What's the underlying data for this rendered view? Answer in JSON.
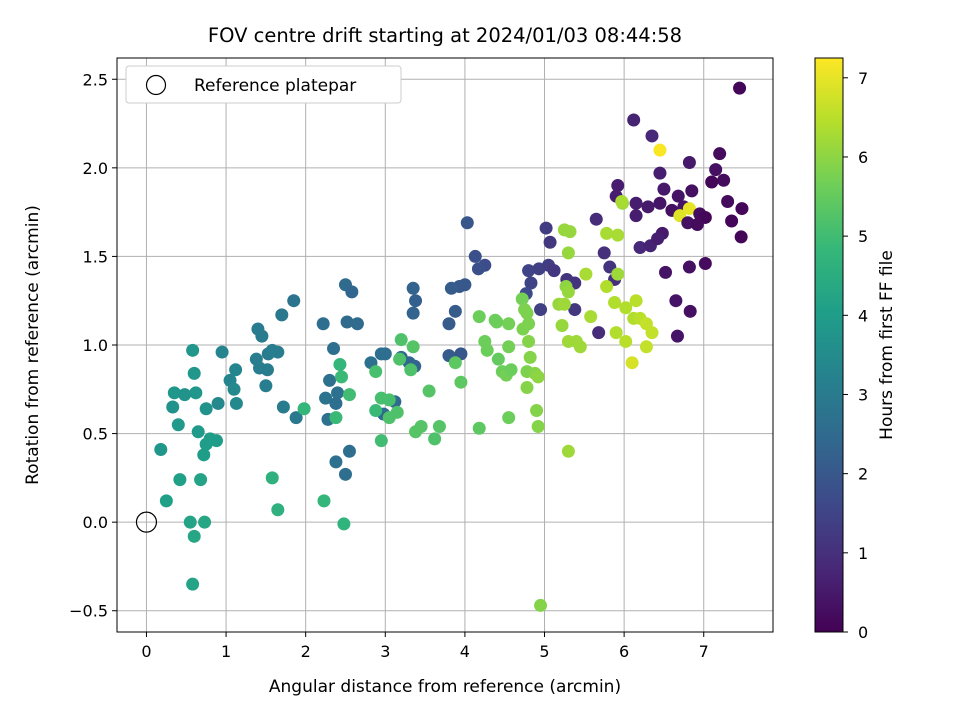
{
  "chart_data": {
    "type": "scatter",
    "title": "FOV centre drift starting at 2024/01/03 08:44:58",
    "xlabel": "Angular distance from reference (arcmin)",
    "ylabel": "Rotation from reference (arcmin)",
    "xlim": [
      -0.37,
      7.87
    ],
    "ylim": [
      -0.62,
      2.62
    ],
    "xticks": [
      0,
      1,
      2,
      3,
      4,
      5,
      6,
      7
    ],
    "xtick_labels": [
      "0",
      "1",
      "2",
      "3",
      "4",
      "5",
      "6",
      "7"
    ],
    "yticks": [
      -0.5,
      0.0,
      0.5,
      1.0,
      1.5,
      2.0,
      2.5
    ],
    "ytick_labels": [
      "−0.5",
      "0.0",
      "0.5",
      "1.0",
      "1.5",
      "2.0",
      "2.5"
    ],
    "grid": true,
    "legend": {
      "position": "top-left",
      "label": "Reference platepar"
    },
    "reference_point": {
      "x": 0,
      "y": 0
    },
    "colorbar": {
      "label": "Hours from first FF file",
      "range": [
        0,
        7.25
      ],
      "ticks": [
        0,
        1,
        2,
        3,
        4,
        5,
        6,
        7
      ],
      "tick_labels": [
        "0",
        "1",
        "2",
        "3",
        "4",
        "5",
        "6",
        "7"
      ],
      "colormap": "viridis"
    },
    "colormap_stops": [
      "#440154",
      "#482878",
      "#3e4989",
      "#31688e",
      "#26828e",
      "#1f9e89",
      "#35b779",
      "#6ece58",
      "#b5de2b",
      "#fde725"
    ],
    "points": [
      [
        7.45,
        2.45,
        0.1
      ],
      [
        6.12,
        2.27,
        0.7
      ],
      [
        6.35,
        2.18,
        0.8
      ],
      [
        6.45,
        2.1,
        7.2
      ],
      [
        7.2,
        2.08,
        0.2
      ],
      [
        5.92,
        1.9,
        0.6
      ],
      [
        6.45,
        1.97,
        0.6
      ],
      [
        7.15,
        1.99,
        0.3
      ],
      [
        6.82,
        2.03,
        0.5
      ],
      [
        7.25,
        1.93,
        0.2
      ],
      [
        7.1,
        1.92,
        0.1
      ],
      [
        6.5,
        1.88,
        0.5
      ],
      [
        6.68,
        1.84,
        0.4
      ],
      [
        6.85,
        1.87,
        0.3
      ],
      [
        7.3,
        1.81,
        0.2
      ],
      [
        7.48,
        1.77,
        0.1
      ],
      [
        5.9,
        1.84,
        0.6
      ],
      [
        5.98,
        1.8,
        6.2
      ],
      [
        6.15,
        1.8,
        0.6
      ],
      [
        6.3,
        1.78,
        0.5
      ],
      [
        6.45,
        1.8,
        0.4
      ],
      [
        6.6,
        1.76,
        0.3
      ],
      [
        6.75,
        1.78,
        0.4
      ],
      [
        6.82,
        1.77,
        7.0
      ],
      [
        6.95,
        1.74,
        0.2
      ],
      [
        7.02,
        1.72,
        0.1
      ],
      [
        6.7,
        1.73,
        6.9
      ],
      [
        6.8,
        1.69,
        0.3
      ],
      [
        6.92,
        1.68,
        0.2
      ],
      [
        7.35,
        1.7,
        0.1
      ],
      [
        5.65,
        1.71,
        0.9
      ],
      [
        6.15,
        1.73,
        0.6
      ],
      [
        6.48,
        1.63,
        0.5
      ],
      [
        6.2,
        1.55,
        0.8
      ],
      [
        6.33,
        1.56,
        0.7
      ],
      [
        6.42,
        1.6,
        0.6
      ],
      [
        7.47,
        1.61,
        0.1
      ],
      [
        5.02,
        1.66,
        1.3
      ],
      [
        5.07,
        1.58,
        1.2
      ],
      [
        5.75,
        1.52,
        1.0
      ],
      [
        5.82,
        1.44,
        1.1
      ],
      [
        5.88,
        1.37,
        1.0
      ],
      [
        6.52,
        1.41,
        0.4
      ],
      [
        6.82,
        1.44,
        0.3
      ],
      [
        7.02,
        1.46,
        0.2
      ],
      [
        4.03,
        1.69,
        2.0
      ],
      [
        4.13,
        1.5,
        1.8
      ],
      [
        4.25,
        1.45,
        1.7
      ],
      [
        4.17,
        1.43,
        1.8
      ],
      [
        4.8,
        1.42,
        1.5
      ],
      [
        4.93,
        1.43,
        1.4
      ],
      [
        5.05,
        1.45,
        1.3
      ],
      [
        5.12,
        1.42,
        1.2
      ],
      [
        4.83,
        1.35,
        1.5
      ],
      [
        5.28,
        1.37,
        1.1
      ],
      [
        5.38,
        1.35,
        1.1
      ],
      [
        4.77,
        1.29,
        1.6
      ],
      [
        4.95,
        1.2,
        1.4
      ],
      [
        5.38,
        1.2,
        1.2
      ],
      [
        5.68,
        1.07,
        0.9
      ],
      [
        6.65,
        1.25,
        0.4
      ],
      [
        6.83,
        1.19,
        0.3
      ],
      [
        6.67,
        1.05,
        0.4
      ],
      [
        3.93,
        1.33,
        2.0
      ],
      [
        4.0,
        1.34,
        2.0
      ],
      [
        3.83,
        1.32,
        2.1
      ],
      [
        3.35,
        1.32,
        2.3
      ],
      [
        3.38,
        1.25,
        2.2
      ],
      [
        3.35,
        1.18,
        2.3
      ],
      [
        3.88,
        1.19,
        2.1
      ],
      [
        3.8,
        1.12,
        2.1
      ],
      [
        3.37,
        0.88,
        2.3
      ],
      [
        3.3,
        0.9,
        2.4
      ],
      [
        3.8,
        0.94,
        2.1
      ],
      [
        3.95,
        0.95,
        2.0
      ],
      [
        3.2,
        0.93,
        2.4
      ],
      [
        2.82,
        0.9,
        2.7
      ],
      [
        2.95,
        0.95,
        2.6
      ],
      [
        3.0,
        0.95,
        2.6
      ],
      [
        3.12,
        0.68,
        2.5
      ],
      [
        2.98,
        0.61,
        2.5
      ],
      [
        2.5,
        1.34,
        2.5
      ],
      [
        2.58,
        1.3,
        2.4
      ],
      [
        2.52,
        1.13,
        2.5
      ],
      [
        2.65,
        1.12,
        2.5
      ],
      [
        2.22,
        1.12,
        2.6
      ],
      [
        2.35,
        0.98,
        2.6
      ],
      [
        2.3,
        0.8,
        2.7
      ],
      [
        2.25,
        0.7,
        2.8
      ],
      [
        2.4,
        0.73,
        2.7
      ],
      [
        2.28,
        0.58,
        2.7
      ],
      [
        2.38,
        0.67,
        2.6
      ],
      [
        2.38,
        0.34,
        2.7
      ],
      [
        2.55,
        0.4,
        2.6
      ],
      [
        2.5,
        0.27,
        2.6
      ],
      [
        1.85,
        1.25,
        2.8
      ],
      [
        1.7,
        1.17,
        2.9
      ],
      [
        1.4,
        1.09,
        3.0
      ],
      [
        1.45,
        1.05,
        3.0
      ],
      [
        1.53,
        0.95,
        3.0
      ],
      [
        1.58,
        0.97,
        3.1
      ],
      [
        1.65,
        0.96,
        3.1
      ],
      [
        1.38,
        0.92,
        3.1
      ],
      [
        1.42,
        0.87,
        3.1
      ],
      [
        1.52,
        0.86,
        3.0
      ],
      [
        1.5,
        0.77,
        3.1
      ],
      [
        1.72,
        0.65,
        3.0
      ],
      [
        1.88,
        0.59,
        2.9
      ],
      [
        1.12,
        0.86,
        3.3
      ],
      [
        1.05,
        0.8,
        3.3
      ],
      [
        1.1,
        0.75,
        3.4
      ],
      [
        1.13,
        0.67,
        3.4
      ],
      [
        0.95,
        0.96,
        3.3
      ],
      [
        0.9,
        0.67,
        3.4
      ],
      [
        0.58,
        0.97,
        3.8
      ],
      [
        0.6,
        0.84,
        3.8
      ],
      [
        0.62,
        0.73,
        3.8
      ],
      [
        0.35,
        0.73,
        3.8
      ],
      [
        0.48,
        0.72,
        3.7
      ],
      [
        0.33,
        0.65,
        3.7
      ],
      [
        0.75,
        0.64,
        3.7
      ],
      [
        0.65,
        0.51,
        3.9
      ],
      [
        0.4,
        0.55,
        3.9
      ],
      [
        0.8,
        0.47,
        4.0
      ],
      [
        0.88,
        0.46,
        4.0
      ],
      [
        0.75,
        0.44,
        4.0
      ],
      [
        0.72,
        0.38,
        4.0
      ],
      [
        0.18,
        0.41,
        3.8
      ],
      [
        0.42,
        0.24,
        4.1
      ],
      [
        0.68,
        0.24,
        4.2
      ],
      [
        0.25,
        0.12,
        4.1
      ],
      [
        0.55,
        0.0,
        4.2
      ],
      [
        0.73,
        0.0,
        4.3
      ],
      [
        0.6,
        -0.08,
        4.3
      ],
      [
        0.58,
        -0.35,
        4.2
      ],
      [
        1.58,
        0.25,
        4.6
      ],
      [
        1.65,
        0.07,
        4.6
      ],
      [
        1.98,
        0.64,
        4.8
      ],
      [
        2.38,
        0.59,
        4.9
      ],
      [
        2.23,
        0.12,
        4.8
      ],
      [
        2.48,
        -0.01,
        4.7
      ],
      [
        2.43,
        0.89,
        4.8
      ],
      [
        2.45,
        0.82,
        4.9
      ],
      [
        2.55,
        0.72,
        5.0
      ],
      [
        2.88,
        0.63,
        4.9
      ],
      [
        2.95,
        0.7,
        5.1
      ],
      [
        3.05,
        0.69,
        5.1
      ],
      [
        2.95,
        0.46,
        5.0
      ],
      [
        3.05,
        0.59,
        5.2
      ],
      [
        3.15,
        0.62,
        5.2
      ],
      [
        2.88,
        0.85,
        5.1
      ],
      [
        3.18,
        0.92,
        5.2
      ],
      [
        3.2,
        1.03,
        5.2
      ],
      [
        3.35,
        0.99,
        5.3
      ],
      [
        3.32,
        0.86,
        5.2
      ],
      [
        3.38,
        0.51,
        5.3
      ],
      [
        3.45,
        0.54,
        5.3
      ],
      [
        3.55,
        0.74,
        5.3
      ],
      [
        3.62,
        0.47,
        5.2
      ],
      [
        3.68,
        0.54,
        5.3
      ],
      [
        3.88,
        0.9,
        5.4
      ],
      [
        3.95,
        0.79,
        5.4
      ],
      [
        4.18,
        0.53,
        5.4
      ],
      [
        4.18,
        1.16,
        5.6
      ],
      [
        4.38,
        1.14,
        5.6
      ],
      [
        4.4,
        1.13,
        5.6
      ],
      [
        4.55,
        1.12,
        5.7
      ],
      [
        4.25,
        1.02,
        5.6
      ],
      [
        4.28,
        0.97,
        5.6
      ],
      [
        4.42,
        0.92,
        5.5
      ],
      [
        4.47,
        0.85,
        5.6
      ],
      [
        4.52,
        0.83,
        5.7
      ],
      [
        4.55,
        0.99,
        5.7
      ],
      [
        4.58,
        0.86,
        5.6
      ],
      [
        4.55,
        0.59,
        5.6
      ],
      [
        4.72,
        1.26,
        5.7
      ],
      [
        4.75,
        1.2,
        5.8
      ],
      [
        4.78,
        1.18,
        5.8
      ],
      [
        4.73,
        1.09,
        5.8
      ],
      [
        4.8,
        1.12,
        5.8
      ],
      [
        4.8,
        1.02,
        5.9
      ],
      [
        4.78,
        0.85,
        5.8
      ],
      [
        4.78,
        0.76,
        5.9
      ],
      [
        4.82,
        0.93,
        5.9
      ],
      [
        4.88,
        0.84,
        5.9
      ],
      [
        4.92,
        0.82,
        6.0
      ],
      [
        4.9,
        0.63,
        5.9
      ],
      [
        4.92,
        0.54,
        5.9
      ],
      [
        4.95,
        -0.47,
        5.9
      ],
      [
        5.25,
        1.65,
        6.1
      ],
      [
        5.32,
        1.64,
        6.1
      ],
      [
        5.3,
        1.52,
        6.1
      ],
      [
        5.27,
        1.33,
        6.0
      ],
      [
        5.3,
        1.3,
        6.1
      ],
      [
        5.18,
        1.23,
        6.1
      ],
      [
        5.25,
        1.23,
        6.2
      ],
      [
        5.22,
        1.11,
        6.1
      ],
      [
        5.3,
        1.02,
        6.2
      ],
      [
        5.4,
        1.02,
        6.2
      ],
      [
        5.45,
        0.99,
        6.2
      ],
      [
        5.52,
        1.4,
        6.3
      ],
      [
        5.58,
        1.16,
        6.3
      ],
      [
        5.3,
        0.4,
        6.2
      ],
      [
        5.78,
        1.63,
        6.3
      ],
      [
        5.92,
        1.62,
        6.3
      ],
      [
        5.92,
        1.4,
        6.2
      ],
      [
        5.78,
        1.33,
        6.4
      ],
      [
        5.88,
        1.24,
        6.4
      ],
      [
        5.9,
        1.07,
        6.4
      ],
      [
        6.02,
        1.21,
        6.4
      ],
      [
        6.12,
        1.15,
        6.4
      ],
      [
        6.02,
        1.02,
        6.5
      ],
      [
        6.15,
        1.25,
        6.5
      ],
      [
        6.2,
        1.15,
        6.5
      ],
      [
        6.28,
        1.12,
        6.6
      ],
      [
        6.35,
        1.07,
        6.6
      ],
      [
        6.28,
        0.99,
        6.6
      ],
      [
        6.1,
        0.9,
        6.8
      ],
      [
        5.97,
        1.81,
        6.3
      ]
    ]
  }
}
